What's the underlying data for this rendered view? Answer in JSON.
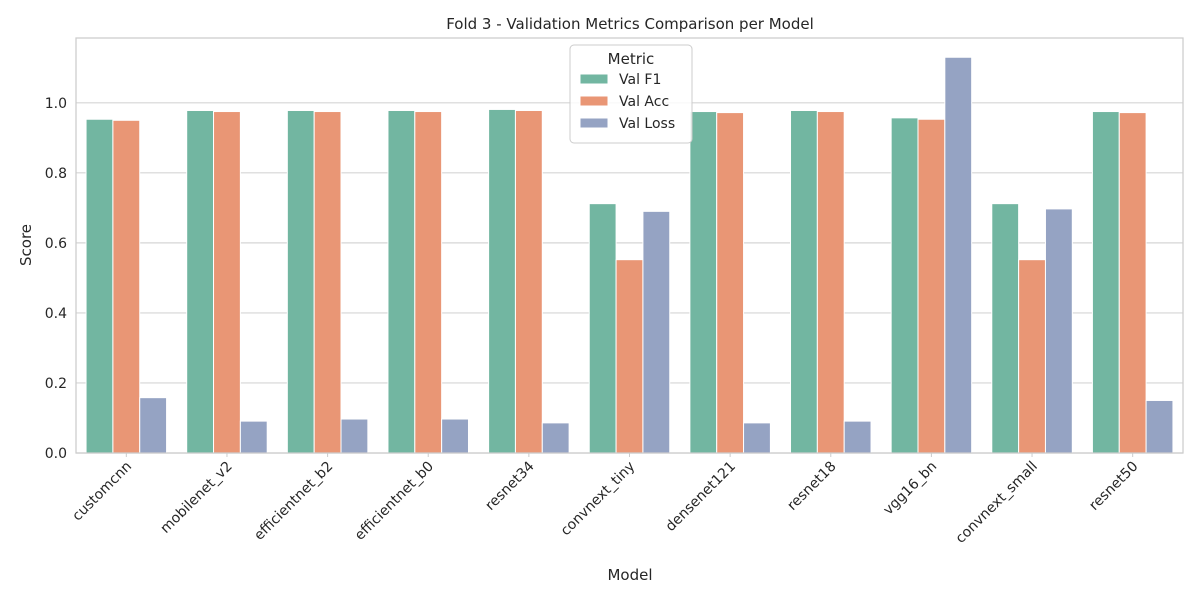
{
  "chart_data": {
    "type": "bar",
    "title": "Fold 3 - Validation Metrics Comparison per Model",
    "xlabel": "Model",
    "ylabel": "Score",
    "ylim": [
      0,
      1.185
    ],
    "yticks": [
      "0.0",
      "0.2",
      "0.4",
      "0.6",
      "0.8",
      "1.0"
    ],
    "grid": true,
    "legend": {
      "title": "Metric",
      "placement": "top-center"
    },
    "categories": [
      "customcnn",
      "mobilenet_v2",
      "efficientnet_b2",
      "efficientnet_b0",
      "resnet34",
      "convnext_tiny",
      "densenet121",
      "resnet18",
      "vgg16_bn",
      "convnext_small",
      "resnet50"
    ],
    "series": [
      {
        "name": "Val F1",
        "color": "#72b6a1",
        "values": [
          0.953,
          0.978,
          0.978,
          0.978,
          0.981,
          0.712,
          0.975,
          0.978,
          0.957,
          0.712,
          0.975
        ]
      },
      {
        "name": "Val Acc",
        "color": "#e99675",
        "values": [
          0.95,
          0.975,
          0.975,
          0.975,
          0.978,
          0.552,
          0.972,
          0.975,
          0.953,
          0.552,
          0.972
        ]
      },
      {
        "name": "Val Loss",
        "color": "#95a3c3",
        "values": [
          0.158,
          0.091,
          0.097,
          0.097,
          0.086,
          0.69,
          0.086,
          0.091,
          1.13,
          0.697,
          0.15
        ]
      }
    ]
  }
}
